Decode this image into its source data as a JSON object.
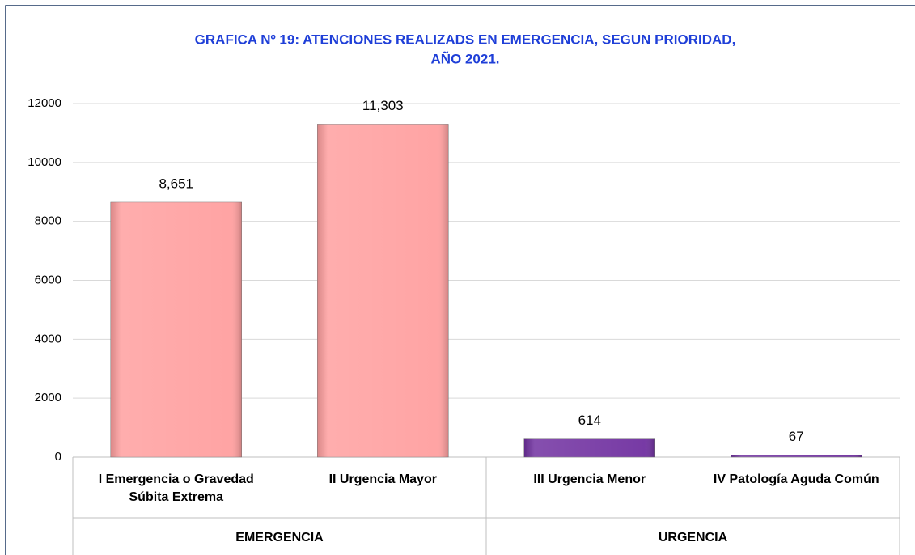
{
  "chart_data": {
    "type": "bar",
    "title": [
      "GRAFICA Nº 19: ATENCIONES REALIZADS EN EMERGENCIA, SEGUN PRIORIDAD,",
      "AÑO 2021."
    ],
    "groups": [
      {
        "name": "EMERGENCIA",
        "color": "#ff9f9f",
        "categories": [
          "I  Emergencia o Gravedad Súbita Extrema",
          "II  Urgencia Mayor"
        ],
        "values": [
          8651,
          11303
        ],
        "value_labels": [
          "8,651",
          "11,303"
        ]
      },
      {
        "name": "URGENCIA",
        "color": "#7030a0",
        "categories": [
          "III Urgencia Menor",
          "IV  Patología Aguda Común"
        ],
        "values": [
          614,
          67
        ],
        "value_labels": [
          "614",
          "67"
        ]
      }
    ],
    "ylim": [
      0,
      12000
    ],
    "yticks": [
      0,
      2000,
      4000,
      6000,
      8000,
      10000,
      12000
    ],
    "grid": true
  }
}
